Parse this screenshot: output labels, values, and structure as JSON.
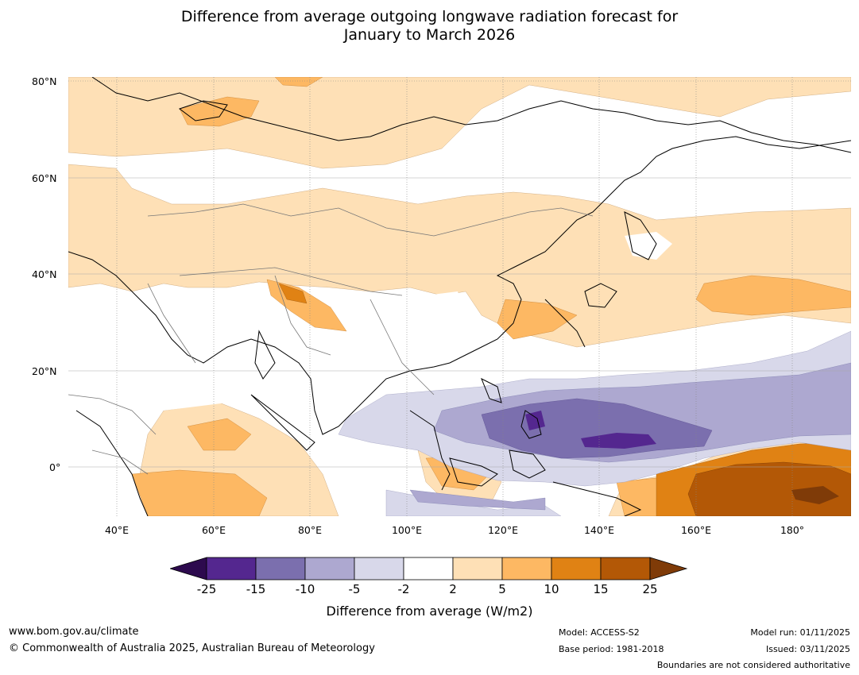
{
  "title": {
    "line1": "Difference from average outgoing longwave radiation forecast for",
    "line2": "January to March 2026"
  },
  "map": {
    "lat_ticks": [
      "80°N",
      "60°N",
      "40°N",
      "20°N",
      "0°"
    ],
    "lon_ticks": [
      "40°E",
      "60°E",
      "80°E",
      "100°E",
      "120°E",
      "140°E",
      "160°E",
      "180°"
    ],
    "colors": {
      "deep_purple": "#2d0a4e",
      "purple_25_15": "#54278f",
      "purple_15_10": "#7b6fae",
      "purple_10_5": "#ada8d0",
      "purple_5_2": "#d8d8ea",
      "white": "#ffffff",
      "orange_2_5": "#fee0b6",
      "orange_5_10": "#fdb863",
      "orange_10_15": "#e08214",
      "orange_15_25": "#b35806",
      "deep_orange": "#7f3b08"
    }
  },
  "colorbar": {
    "ticks": [
      "-25",
      "-15",
      "-10",
      "-5",
      "-2",
      "2",
      "5",
      "10",
      "15",
      "25"
    ],
    "label": "Difference from average (W/m2)"
  },
  "footer": {
    "url": "www.bom.gov.au/climate",
    "copyright": "© Commonwealth of Australia 2025, Australian Bureau of Meteorology",
    "model": "Model: ACCESS-S2",
    "base_period": "Base period: 1981-2018",
    "model_run": "Model run: 01/11/2025",
    "issued": "Issued: 03/11/2025",
    "disclaimer": "Boundaries are not considered authoritative"
  }
}
